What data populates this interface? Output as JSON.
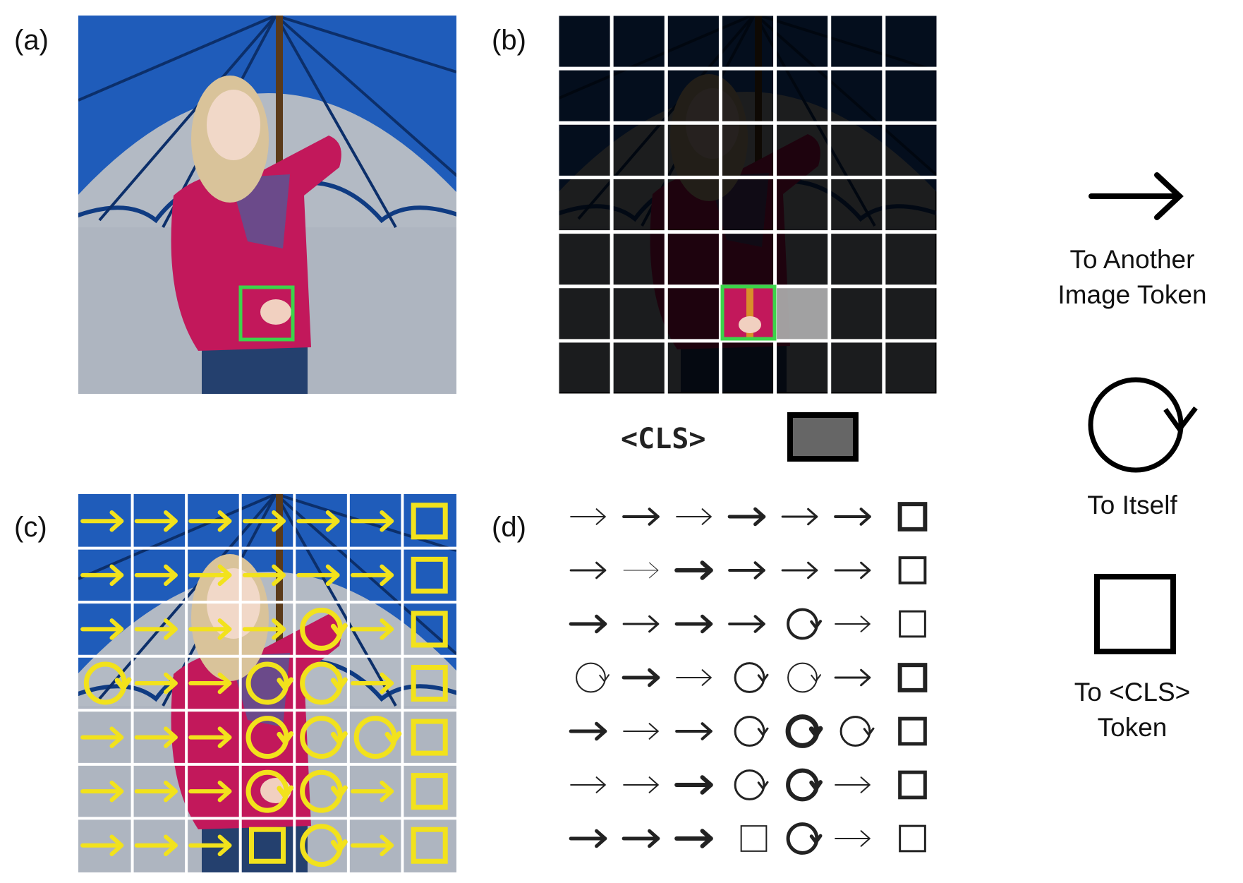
{
  "panels": {
    "a": {
      "label": "(a)"
    },
    "b": {
      "label": "(b)",
      "cls_label": "<CLS>"
    },
    "c": {
      "label": "(c)"
    },
    "d": {
      "label": "(d)"
    }
  },
  "legend": {
    "arrow": {
      "line1": "To Another",
      "line2": "Image Token",
      "icon": "right-arrow-icon"
    },
    "self": {
      "line1": "To Itself",
      "icon": "circular-arrow-icon"
    },
    "cls": {
      "line1": "To <CLS>",
      "line2": "Token",
      "icon": "square-icon"
    }
  },
  "grid": {
    "rows": 7,
    "cols": 7,
    "highlight": {
      "row": 5,
      "col": 3
    }
  },
  "colors": {
    "sky": "#1f5fbf",
    "umbrella": "#1e56b5",
    "gravel": "#b8bec8",
    "jacket": "#c2185b",
    "highlight_box": "#3cd44a",
    "attention_glyph": "#f2e21c",
    "grid_line": "#ffffff",
    "cls_fill": "#666666"
  },
  "attention_map": [
    [
      "arrow",
      "arrow",
      "arrow",
      "arrow",
      "arrow",
      "arrow",
      "cls"
    ],
    [
      "arrow",
      "arrow",
      "arrow",
      "arrow",
      "arrow",
      "arrow",
      "cls"
    ],
    [
      "arrow",
      "arrow",
      "arrow",
      "arrow",
      "self",
      "arrow",
      "cls"
    ],
    [
      "self",
      "arrow",
      "arrow",
      "self",
      "self",
      "arrow",
      "cls"
    ],
    [
      "arrow",
      "arrow",
      "arrow",
      "self",
      "self",
      "self",
      "cls"
    ],
    [
      "arrow",
      "arrow",
      "arrow",
      "self",
      "self",
      "arrow",
      "cls"
    ],
    [
      "arrow",
      "arrow",
      "arrow",
      "cls",
      "self",
      "arrow",
      "cls"
    ]
  ]
}
